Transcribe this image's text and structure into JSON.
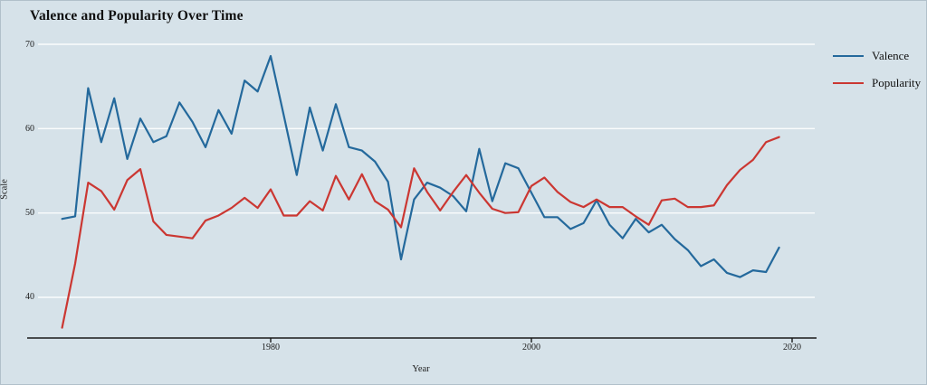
{
  "chart_data": {
    "type": "line",
    "title": "Valence and Popularity Over Time",
    "xlabel": "Year",
    "ylabel": "Scale",
    "x": [
      1964,
      1965,
      1966,
      1967,
      1968,
      1969,
      1970,
      1971,
      1972,
      1973,
      1974,
      1975,
      1976,
      1977,
      1978,
      1979,
      1980,
      1981,
      1982,
      1983,
      1984,
      1985,
      1986,
      1987,
      1988,
      1989,
      1990,
      1991,
      1992,
      1993,
      1994,
      1995,
      1996,
      1997,
      1998,
      1999,
      2000,
      2001,
      2002,
      2003,
      2004,
      2005,
      2006,
      2007,
      2008,
      2009,
      2010,
      2011,
      2012,
      2013,
      2014,
      2015,
      2016,
      2017,
      2018,
      2019
    ],
    "series": [
      {
        "name": "Valence",
        "color": "#24699c",
        "values": [
          49.3,
          49.6,
          64.8,
          58.4,
          63.6,
          56.4,
          61.2,
          58.4,
          59.1,
          63.1,
          60.8,
          57.8,
          62.2,
          59.4,
          65.7,
          64.4,
          68.6,
          61.6,
          54.5,
          62.5,
          57.4,
          62.9,
          57.8,
          57.4,
          56.1,
          53.7,
          44.5,
          51.6,
          53.6,
          53.0,
          52.0,
          50.2,
          57.6,
          51.4,
          55.9,
          55.3,
          52.4,
          49.5,
          49.5,
          48.1,
          48.8,
          51.5,
          48.6,
          47.0,
          49.3,
          47.7,
          48.6,
          46.9,
          45.6,
          43.7,
          44.5,
          42.9,
          42.4,
          43.2,
          43.0,
          45.9
        ]
      },
      {
        "name": "Popularity",
        "color": "#cb3732",
        "values": [
          36.4,
          44.0,
          53.6,
          52.6,
          50.4,
          53.9,
          55.2,
          49.0,
          47.4,
          47.2,
          47.0,
          49.1,
          49.7,
          50.6,
          51.8,
          50.6,
          52.8,
          49.7,
          49.7,
          51.4,
          50.3,
          54.4,
          51.6,
          54.6,
          51.4,
          50.4,
          48.3,
          55.3,
          52.5,
          50.3,
          52.5,
          54.5,
          52.4,
          50.5,
          50.0,
          50.1,
          53.2,
          54.2,
          52.5,
          51.3,
          50.7,
          51.6,
          50.7,
          50.7,
          49.6,
          48.6,
          51.5,
          51.7,
          50.7,
          50.7,
          50.9,
          53.3,
          55.1,
          56.3,
          58.4,
          59.0
        ]
      }
    ],
    "x_ticks": [
      1980,
      2000,
      2020
    ],
    "y_ticks": [
      70,
      60,
      50,
      40
    ],
    "xlim": [
      1961.3,
      2021.7
    ],
    "ylim": [
      35.2,
      70
    ],
    "grid": "horizontal",
    "legend_position": "right",
    "colors": {
      "background": "#d6e2e9",
      "gridline": "#fafcfd",
      "axis": "#1a1a1a",
      "text": "#1b1b1b"
    }
  }
}
